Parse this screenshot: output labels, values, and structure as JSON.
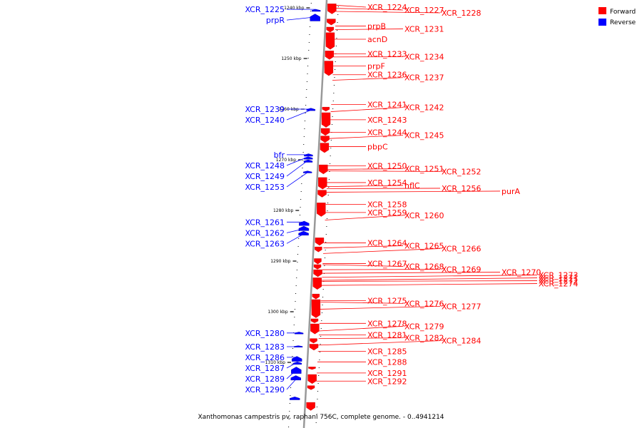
{
  "caption": "Xanthomonas campestris pv. raphani 756C, complete genome. - 0..4941214",
  "legend": [
    {
      "label": "Forward",
      "color": "#ff0000"
    },
    {
      "label": "Reverse",
      "color": "#0000ff"
    }
  ],
  "colors": {
    "forward": "#ff0000",
    "reverse": "#0000ff",
    "axis": "#999999"
  },
  "ticks": [
    {
      "label": "1240 kbp",
      "pos": 1240
    },
    {
      "label": "1250 kbp",
      "pos": 1250
    },
    {
      "label": "1260 kbp",
      "pos": 1260
    },
    {
      "label": "1270 kbp",
      "pos": 1270
    },
    {
      "label": "1280 kbp",
      "pos": 1280
    },
    {
      "label": "1290 kbp",
      "pos": 1290
    },
    {
      "label": "1300 kbp",
      "pos": 1300
    },
    {
      "label": "1310 kbp",
      "pos": 1310
    }
  ],
  "reverse_genes": [
    {
      "label": "XCR_1225",
      "pos": 1240.3
    },
    {
      "label": "prpR",
      "pos": 1241.8
    },
    {
      "label": "XCR_1239",
      "pos": 1260.0
    },
    {
      "label": "XCR_1240",
      "pos": 1260.2
    },
    {
      "label": "bfr",
      "pos": 1269.0
    },
    {
      "label": "XCR_1248",
      "pos": 1269.4
    },
    {
      "label": "XCR_1249",
      "pos": 1270.1
    },
    {
      "label": "XCR_1253",
      "pos": 1272.5
    },
    {
      "label": "XCR_1261",
      "pos": 1282.3
    },
    {
      "label": "XCR_1262",
      "pos": 1283.6
    },
    {
      "label": "XCR_1263",
      "pos": 1284.6
    },
    {
      "label": "XCR_1280",
      "pos": 1304.2
    },
    {
      "label": "XCR_1283",
      "pos": 1306.9
    },
    {
      "label": "XCR_1286",
      "pos": 1309.0
    },
    {
      "label": "XCR_1287",
      "pos": 1310.0
    },
    {
      "label": "XCR_1289",
      "pos": 1311.4
    },
    {
      "label": "XCR_1290",
      "pos": 1313.2
    }
  ],
  "forward_genes": [
    {
      "label": "XCR_1224",
      "pos": 1239.5
    },
    {
      "label": "XCR_1227",
      "pos": 1240.1
    },
    {
      "label": "XCR_1228",
      "pos": 1240.7
    },
    {
      "label": "prpB",
      "pos": 1243.6
    },
    {
      "label": "XCR_1231",
      "pos": 1244.3
    },
    {
      "label": "acnD",
      "pos": 1246.2
    },
    {
      "label": "XCR_1233",
      "pos": 1249.1
    },
    {
      "label": "XCR_1234",
      "pos": 1249.7
    },
    {
      "label": "prpF",
      "pos": 1251.5
    },
    {
      "label": "XCR_1236",
      "pos": 1253.2
    },
    {
      "label": "XCR_1237",
      "pos": 1254.3
    },
    {
      "label": "XCR_1241",
      "pos": 1259.1
    },
    {
      "label": "XCR_1242",
      "pos": 1260.5
    },
    {
      "label": "XCR_1243",
      "pos": 1262.1
    },
    {
      "label": "XCR_1244",
      "pos": 1264.6
    },
    {
      "label": "XCR_1245",
      "pos": 1265.8
    },
    {
      "label": "pbpC",
      "pos": 1267.4
    },
    {
      "label": "XCR_1250",
      "pos": 1271.2
    },
    {
      "label": "XCR_1251",
      "pos": 1271.9
    },
    {
      "label": "XCR_1252",
      "pos": 1272.2
    },
    {
      "label": "XCR_1254",
      "pos": 1274.5
    },
    {
      "label": "hflC",
      "pos": 1275.3
    },
    {
      "label": "XCR_1256",
      "pos": 1275.7
    },
    {
      "label": "purA",
      "pos": 1276.4
    },
    {
      "label": "XCR_1258",
      "pos": 1278.8
    },
    {
      "label": "XCR_1259",
      "pos": 1280.4
    },
    {
      "label": "XCR_1260",
      "pos": 1281.9
    },
    {
      "label": "XCR_1264",
      "pos": 1286.4
    },
    {
      "label": "XCR_1265",
      "pos": 1287.4
    },
    {
      "label": "XCR_1266",
      "pos": 1288.5
    },
    {
      "label": "XCR_1267",
      "pos": 1290.5
    },
    {
      "label": "XCR_1268",
      "pos": 1290.7
    },
    {
      "label": "XCR_1269",
      "pos": 1291.7
    },
    {
      "label": "XCR_1270",
      "pos": 1292.4
    },
    {
      "label": "XCR_1273",
      "pos": 1293.2
    },
    {
      "label": "XCR_1271",
      "pos": 1293.8
    },
    {
      "label": "XCR_1272",
      "pos": 1294.0
    },
    {
      "label": "XCR_1274",
      "pos": 1294.8
    },
    {
      "label": "XCR_1275",
      "pos": 1297.8
    },
    {
      "label": "XCR_1276",
      "pos": 1298.1
    },
    {
      "label": "XCR_1277",
      "pos": 1299.5
    },
    {
      "label": "XCR_1278",
      "pos": 1302.3
    },
    {
      "label": "XCR_1279",
      "pos": 1303.8
    },
    {
      "label": "XCR_1281",
      "pos": 1304.6
    },
    {
      "label": "XCR_1282",
      "pos": 1305.3
    },
    {
      "label": "XCR_1284",
      "pos": 1306.6
    },
    {
      "label": "XCR_1285",
      "pos": 1307.8
    },
    {
      "label": "XCR_1288",
      "pos": 1309.9
    },
    {
      "label": "XCR_1291",
      "pos": 1312.1
    },
    {
      "label": "XCR_1292",
      "pos": 1313.7
    }
  ],
  "forward_blocks": [
    {
      "start": 1239.2,
      "end": 1241.2
    },
    {
      "start": 1242.2,
      "end": 1243.4
    },
    {
      "start": 1243.8,
      "end": 1244.8
    },
    {
      "start": 1244.9,
      "end": 1248.2
    },
    {
      "start": 1248.5,
      "end": 1250.2
    },
    {
      "start": 1250.5,
      "end": 1253.4
    },
    {
      "start": 1259.6,
      "end": 1260.4
    },
    {
      "start": 1260.7,
      "end": 1263.6
    },
    {
      "start": 1263.8,
      "end": 1265.2
    },
    {
      "start": 1265.3,
      "end": 1266.6
    },
    {
      "start": 1266.7,
      "end": 1268.6
    },
    {
      "start": 1271.0,
      "end": 1272.8
    },
    {
      "start": 1273.5,
      "end": 1275.8
    },
    {
      "start": 1276.0,
      "end": 1277.4
    },
    {
      "start": 1278.5,
      "end": 1281.2
    },
    {
      "start": 1285.4,
      "end": 1286.9
    },
    {
      "start": 1287.2,
      "end": 1288.2
    },
    {
      "start": 1289.5,
      "end": 1290.6
    },
    {
      "start": 1290.7,
      "end": 1291.6
    },
    {
      "start": 1291.7,
      "end": 1293.1
    },
    {
      "start": 1293.3,
      "end": 1295.6
    },
    {
      "start": 1296.5,
      "end": 1297.5
    },
    {
      "start": 1297.6,
      "end": 1301.2
    },
    {
      "start": 1301.4,
      "end": 1302.2
    },
    {
      "start": 1302.4,
      "end": 1304.4
    },
    {
      "start": 1305.3,
      "end": 1306.2
    },
    {
      "start": 1306.4,
      "end": 1307.6
    },
    {
      "start": 1310.9,
      "end": 1311.4
    },
    {
      "start": 1312.4,
      "end": 1314.2
    },
    {
      "start": 1314.6,
      "end": 1315.4
    },
    {
      "start": 1317.9,
      "end": 1319.5
    }
  ],
  "reverse_blocks": [
    {
      "start": 1240.3,
      "end": 1240.7
    },
    {
      "start": 1241.2,
      "end": 1242.6
    },
    {
      "start": 1259.8,
      "end": 1260.3
    },
    {
      "start": 1268.8,
      "end": 1269.3
    },
    {
      "start": 1269.4,
      "end": 1269.9
    },
    {
      "start": 1270.0,
      "end": 1270.5
    },
    {
      "start": 1272.2,
      "end": 1272.6
    },
    {
      "start": 1282.1,
      "end": 1283.0
    },
    {
      "start": 1283.1,
      "end": 1284.0
    },
    {
      "start": 1284.1,
      "end": 1284.9
    },
    {
      "start": 1304.0,
      "end": 1304.4
    },
    {
      "start": 1306.7,
      "end": 1307.0
    },
    {
      "start": 1308.8,
      "end": 1309.8
    },
    {
      "start": 1309.9,
      "end": 1310.4
    },
    {
      "start": 1310.9,
      "end": 1312.2
    },
    {
      "start": 1312.6,
      "end": 1313.5
    },
    {
      "start": 1316.8,
      "end": 1317.4
    }
  ]
}
